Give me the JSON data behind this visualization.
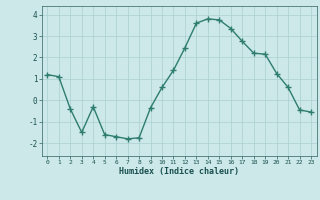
{
  "xlabel": "Humidex (Indice chaleur)",
  "x": [
    0,
    1,
    2,
    3,
    4,
    5,
    6,
    7,
    8,
    9,
    10,
    11,
    12,
    13,
    14,
    15,
    16,
    17,
    18,
    19,
    20,
    21,
    22,
    23
  ],
  "y": [
    1.2,
    1.1,
    -0.4,
    -1.5,
    -0.3,
    -1.6,
    -1.7,
    -1.8,
    -1.75,
    -0.35,
    0.6,
    1.4,
    2.45,
    3.6,
    3.8,
    3.75,
    3.35,
    2.75,
    2.2,
    2.15,
    1.25,
    0.6,
    -0.45,
    -0.55
  ],
  "line_color": "#2e7d6e",
  "marker": "+",
  "marker_size": 4,
  "line_width": 1.0,
  "bg_color": "#cce8e8",
  "grid_color": "#aacfcf",
  "tick_color": "#2e6060",
  "label_color": "#1a5050",
  "xlim": [
    -0.5,
    23.5
  ],
  "ylim": [
    -2.6,
    4.4
  ],
  "yticks": [
    -2,
    -1,
    0,
    1,
    2,
    3,
    4
  ],
  "xticks": [
    0,
    1,
    2,
    3,
    4,
    5,
    6,
    7,
    8,
    9,
    10,
    11,
    12,
    13,
    14,
    15,
    16,
    17,
    18,
    19,
    20,
    21,
    22,
    23
  ]
}
